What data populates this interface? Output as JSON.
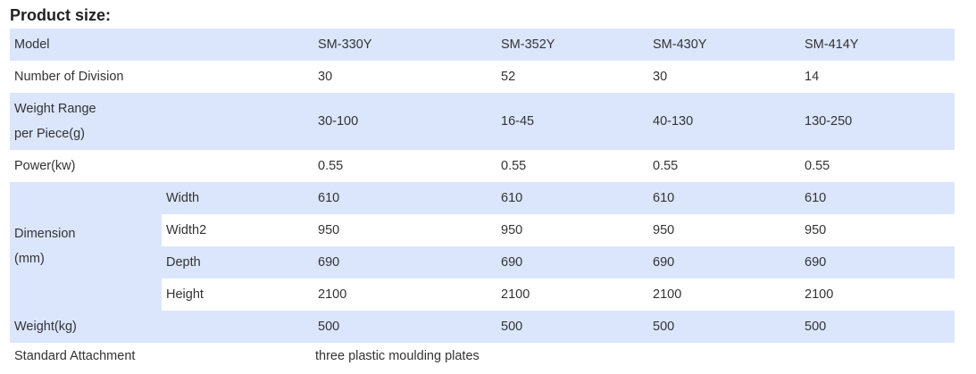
{
  "title": "Product size:",
  "table": {
    "model_label": "Model",
    "models": [
      "SM-330Y",
      "SM-352Y",
      "SM-430Y",
      "SM-414Y"
    ],
    "division_label": "Number of Division",
    "divisions": [
      "30",
      "52",
      "30",
      "14"
    ],
    "weight_range_label_line1": "Weight Range",
    "weight_range_label_line2": "per Piece(g)",
    "weight_ranges": [
      "30-100",
      "16-45",
      "40-130",
      "130-250"
    ],
    "power_label": "Power(kw)",
    "powers": [
      "0.55",
      "0.55",
      "0.55",
      "0.55"
    ],
    "dimension_label_line1": "Dimension",
    "dimension_label_line2": "(mm)",
    "dimensions": [
      {
        "label": "Width",
        "values": [
          "610",
          "610",
          "610",
          "610"
        ]
      },
      {
        "label": "Width2",
        "values": [
          "950",
          "950",
          "950",
          "950"
        ]
      },
      {
        "label": "Depth",
        "values": [
          "690",
          "690",
          "690",
          "690"
        ]
      },
      {
        "label": "Height",
        "values": [
          "2100",
          "2100",
          "2100",
          "2100"
        ]
      }
    ],
    "weight_label": "Weight(kg)",
    "weights": [
      "500",
      "500",
      "500",
      "500"
    ],
    "attachment_label": "Standard Attachment",
    "attachment_value": "three plastic moulding plates"
  },
  "colors": {
    "row_blue": "#dbe6fd",
    "row_white": "#ffffff",
    "text": "#333333"
  }
}
